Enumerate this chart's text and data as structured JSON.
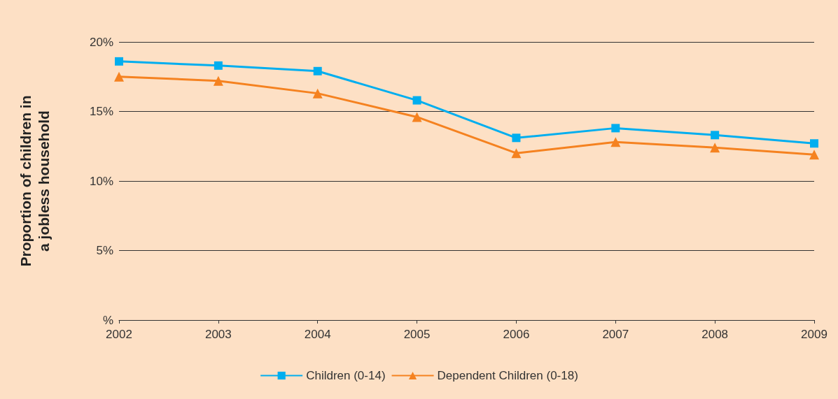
{
  "chart_data": {
    "type": "line",
    "ylabel": "Proportion of children in\na jobless household",
    "categories": [
      "2002",
      "2003",
      "2004",
      "2005",
      "2006",
      "2007",
      "2008",
      "2009"
    ],
    "series": [
      {
        "name": "Children (0-14)",
        "color": "#00aeef",
        "marker": "square",
        "values": [
          18.6,
          18.3,
          17.9,
          15.8,
          13.1,
          13.8,
          13.3,
          12.7
        ]
      },
      {
        "name": "Dependent Children (0-18)",
        "color": "#f58220",
        "marker": "triangle",
        "values": [
          17.5,
          17.2,
          16.3,
          14.6,
          12.0,
          12.8,
          12.4,
          11.9
        ]
      }
    ],
    "ylim": [
      0,
      20
    ],
    "yticks": [
      {
        "value": 0,
        "label": "%"
      },
      {
        "value": 5,
        "label": "5%"
      },
      {
        "value": 10,
        "label": "10%"
      },
      {
        "value": 15,
        "label": "15%"
      },
      {
        "value": 20,
        "label": "20%"
      }
    ],
    "grid": "y",
    "legend": "bottom",
    "line_style": "solid"
  }
}
